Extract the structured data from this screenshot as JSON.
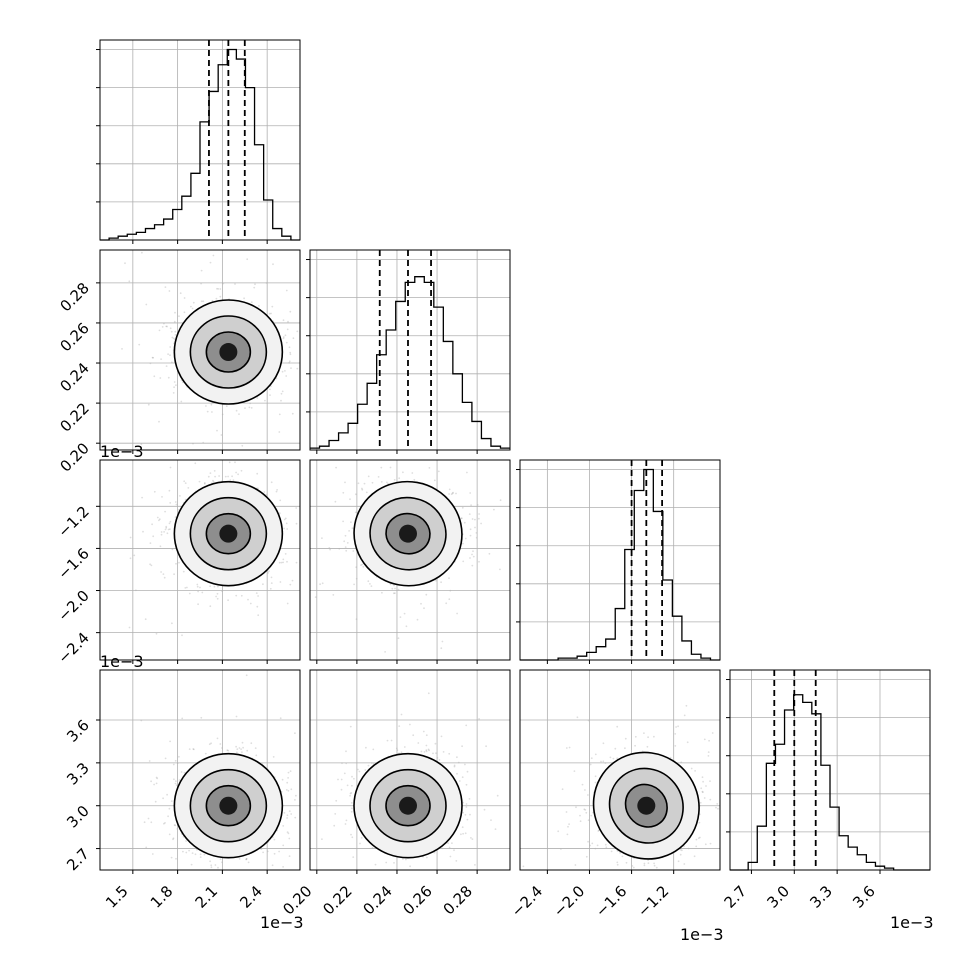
{
  "chart_data": {
    "type": "corner",
    "parameters": [
      {
        "hist_xlim": [
          0.00128,
          0.00262
        ],
        "ticks": [
          0.0015,
          0.0018,
          0.0021,
          0.0024
        ],
        "tick_labels": [
          "1.5",
          "1.8",
          "2.1",
          "2.4"
        ],
        "offset_text": "1e−3",
        "quantiles": [
          0.00201,
          0.00214,
          0.00225
        ]
      },
      {
        "hist_xlim": [
          0.1966,
          0.2964
        ],
        "ticks": [
          0.2,
          0.22,
          0.24,
          0.26,
          0.28
        ],
        "tick_labels": [
          "0.20",
          "0.22",
          "0.24",
          "0.26",
          "0.28"
        ],
        "offset_text": "",
        "quantiles": [
          0.2314,
          0.2455,
          0.257
        ]
      },
      {
        "hist_xlim": [
          -0.00266,
          -0.00076
        ],
        "ticks": [
          -0.0024,
          -0.002,
          -0.0016,
          -0.0012
        ],
        "tick_labels": [
          "−2.4",
          "−2.0",
          "−1.6",
          "−1.2"
        ],
        "offset_text": "1e−3",
        "quantiles": [
          -0.0016,
          -0.00146,
          -0.00131
        ]
      },
      {
        "hist_xlim": [
          0.00255,
          0.00395
        ],
        "ticks": [
          0.0027,
          0.003,
          0.0033,
          0.0036
        ],
        "tick_labels": [
          "2.7",
          "3.0",
          "3.3",
          "3.6"
        ],
        "offset_text": "1e−3",
        "quantiles": [
          0.00286,
          0.003,
          0.00315
        ]
      }
    ],
    "histograms": [
      [
        0.0,
        0.01,
        0.02,
        0.03,
        0.04,
        0.06,
        0.08,
        0.11,
        0.16,
        0.23,
        0.35,
        0.62,
        0.78,
        0.92,
        1.0,
        0.95,
        0.8,
        0.5,
        0.21,
        0.06,
        0.02,
        0.0
      ],
      [
        0.01,
        0.02,
        0.05,
        0.09,
        0.14,
        0.24,
        0.35,
        0.5,
        0.63,
        0.78,
        0.88,
        0.91,
        0.88,
        0.75,
        0.57,
        0.4,
        0.25,
        0.15,
        0.06,
        0.02,
        0.01
      ],
      [
        0.0,
        0.0,
        0.0,
        0.0,
        0.01,
        0.01,
        0.02,
        0.04,
        0.07,
        0.11,
        0.27,
        0.58,
        0.89,
        1.0,
        0.78,
        0.42,
        0.23,
        0.1,
        0.03,
        0.01,
        0.0
      ],
      [
        0.0,
        0.0,
        0.04,
        0.23,
        0.56,
        0.66,
        0.84,
        0.92,
        0.88,
        0.82,
        0.55,
        0.33,
        0.18,
        0.12,
        0.08,
        0.04,
        0.02,
        0.01,
        0.0,
        0.0,
        0.0,
        0.0
      ]
    ],
    "hist_ylim": [
      0,
      1.05
    ],
    "density_ylims": [
      [],
      [
        0.1966,
        0.2964
      ],
      [
        -0.00266,
        -0.00076,
        0.2314
      ],
      [
        0.00255,
        0.00395,
        0.257
      ]
    ],
    "pair_ylims": {
      "1": [
        0.1966,
        0.2964
      ],
      "2": [
        -0.00266,
        -0.00076
      ],
      "3": [
        0.00255,
        0.00395
      ]
    },
    "pair_centers": {
      "1-0": [
        0.00214,
        0.2455
      ],
      "2-0": [
        0.00214,
        -0.00146
      ],
      "2-1": [
        0.2455,
        -0.00146
      ],
      "3-0": [
        0.00214,
        0.003
      ],
      "3-1": [
        0.2455,
        0.003
      ],
      "3-2": [
        -0.00146,
        0.003
      ]
    },
    "grid": true
  }
}
